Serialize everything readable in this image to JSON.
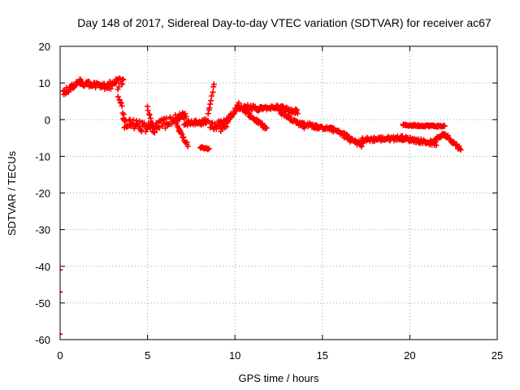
{
  "chart_data": {
    "type": "scatter",
    "title": "Day 148 of 2017, Sidereal Day-to-day VTEC variation (SDTVAR) for receiver ac67",
    "xlabel": "GPS time / hours",
    "ylabel": "SDTVAR / TECUs",
    "xlim": [
      0,
      25
    ],
    "ylim": [
      -60,
      20
    ],
    "xticks": [
      "0",
      "5",
      "10",
      "15",
      "20",
      "25"
    ],
    "yticks": [
      "20",
      "10",
      "0",
      "-10",
      "-20",
      "-30",
      "-40",
      "-50",
      "-60"
    ],
    "grid": true,
    "marker": "plus",
    "series_color": "#ff0000",
    "outliers": [
      [
        0.0,
        -41.0
      ],
      [
        0.0,
        -47.0
      ],
      [
        0.0,
        -58.5
      ]
    ],
    "segments": [
      {
        "x0": 0.2,
        "x1": 1.2,
        "y0": 7.5,
        "y1": 10.5,
        "spread": 1.5
      },
      {
        "x0": 1.2,
        "x1": 2.7,
        "y0": 10.0,
        "y1": 9.0,
        "spread": 1.5
      },
      {
        "x0": 2.7,
        "x1": 3.6,
        "y0": 9.0,
        "y1": 10.5,
        "spread": 2.5
      },
      {
        "x0": 3.3,
        "x1": 3.7,
        "y0": 8.0,
        "y1": 0.0,
        "spread": 2.0
      },
      {
        "x0": 3.6,
        "x1": 5.4,
        "y0": -1.0,
        "y1": -2.5,
        "spread": 3.0
      },
      {
        "x0": 5.0,
        "x1": 5.4,
        "y0": 3.5,
        "y1": -4.0,
        "spread": 1.0
      },
      {
        "x0": 5.4,
        "x1": 7.2,
        "y0": -2.0,
        "y1": 1.0,
        "spread": 3.0
      },
      {
        "x0": 6.7,
        "x1": 7.3,
        "y0": -2.0,
        "y1": -7.0,
        "spread": 1.0
      },
      {
        "x0": 7.1,
        "x1": 8.4,
        "y0": -1.0,
        "y1": -0.5,
        "spread": 1.5
      },
      {
        "x0": 8.0,
        "x1": 8.5,
        "y0": -7.5,
        "y1": -8.0,
        "spread": 0.6
      },
      {
        "x0": 8.4,
        "x1": 8.8,
        "y0": -1.0,
        "y1": 10.0,
        "spread": 1.0
      },
      {
        "x0": 8.6,
        "x1": 9.6,
        "y0": -2.0,
        "y1": -1.0,
        "spread": 2.5
      },
      {
        "x0": 9.2,
        "x1": 10.2,
        "y0": -2.5,
        "y1": 4.0,
        "spread": 1.5
      },
      {
        "x0": 10.2,
        "x1": 11.5,
        "y0": 3.5,
        "y1": 3.0,
        "spread": 1.5
      },
      {
        "x0": 10.5,
        "x1": 11.8,
        "y0": 2.5,
        "y1": -2.5,
        "spread": 1.0
      },
      {
        "x0": 11.4,
        "x1": 12.6,
        "y0": 3.0,
        "y1": 3.5,
        "spread": 1.0
      },
      {
        "x0": 12.4,
        "x1": 13.6,
        "y0": 3.5,
        "y1": 2.0,
        "spread": 1.5
      },
      {
        "x0": 12.6,
        "x1": 14.0,
        "y0": 2.0,
        "y1": -2.0,
        "spread": 1.0
      },
      {
        "x0": 13.8,
        "x1": 14.8,
        "y0": -1.0,
        "y1": -2.0,
        "spread": 1.0
      },
      {
        "x0": 14.5,
        "x1": 15.6,
        "y0": -2.0,
        "y1": -2.5,
        "spread": 0.8
      },
      {
        "x0": 15.5,
        "x1": 16.5,
        "y0": -2.5,
        "y1": -4.5,
        "spread": 1.0
      },
      {
        "x0": 16.2,
        "x1": 17.3,
        "y0": -4.5,
        "y1": -7.0,
        "spread": 1.2
      },
      {
        "x0": 17.2,
        "x1": 19.6,
        "y0": -5.5,
        "y1": -5.0,
        "spread": 1.2
      },
      {
        "x0": 19.5,
        "x1": 21.5,
        "y0": -5.0,
        "y1": -6.5,
        "spread": 1.2
      },
      {
        "x0": 19.6,
        "x1": 22.0,
        "y0": -1.5,
        "y1": -1.8,
        "spread": 0.5
      },
      {
        "x0": 21.4,
        "x1": 22.0,
        "y0": -5.5,
        "y1": -4.0,
        "spread": 1.0
      },
      {
        "x0": 22.0,
        "x1": 22.9,
        "y0": -4.0,
        "y1": -8.0,
        "spread": 1.2
      }
    ]
  }
}
